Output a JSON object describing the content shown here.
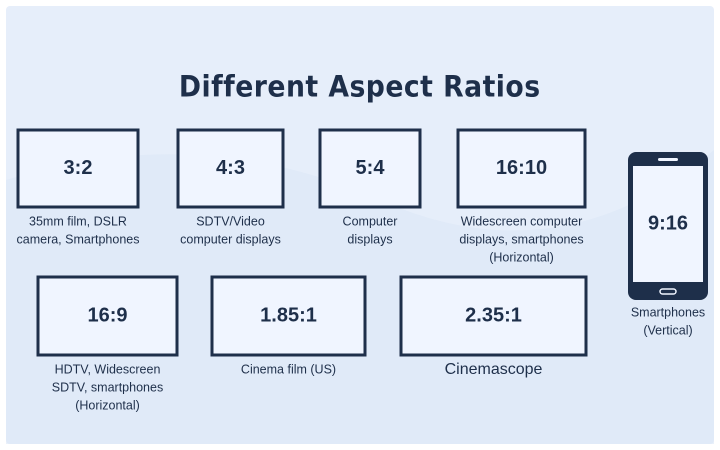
{
  "title": "Different Aspect Ratios",
  "items": [
    {
      "ratio": "3:2",
      "label": [
        "35mm film, DSLR",
        "camera, Smartphones"
      ]
    },
    {
      "ratio": "4:3",
      "label": [
        "SDTV/Video",
        "computer displays"
      ]
    },
    {
      "ratio": "5:4",
      "label": [
        "Computer",
        "displays"
      ]
    },
    {
      "ratio": "16:10",
      "label": [
        "Widescreen computer",
        "displays, smartphones",
        "(Horizontal)"
      ]
    },
    {
      "ratio": "16:9",
      "label": [
        "HDTV, Widescreen",
        "SDTV, smartphones",
        "(Horizontal)"
      ]
    },
    {
      "ratio": "1.85:1",
      "label": [
        "Cinema film (US)"
      ]
    },
    {
      "ratio": "2.35:1",
      "label": [
        "Cinemascope"
      ]
    },
    {
      "ratio": "9:16",
      "label": [
        "Smartphones",
        "(Vertical)"
      ]
    }
  ]
}
